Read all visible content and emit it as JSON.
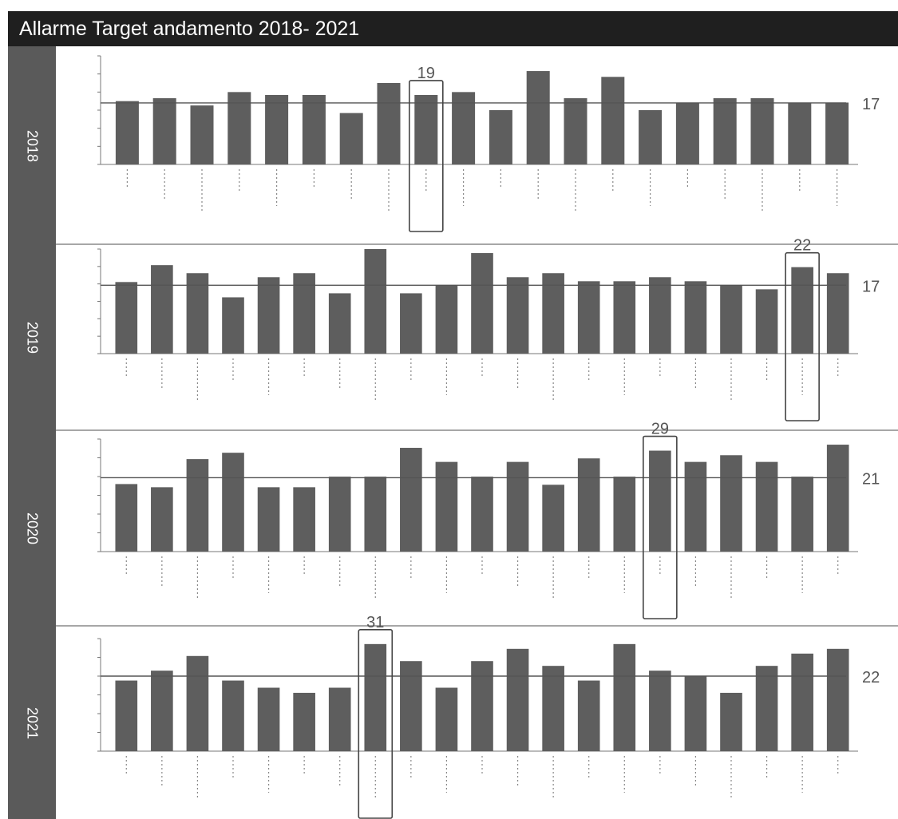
{
  "title": "Allarme Target andamento 2018- 2021",
  "colors": {
    "bar": "#5e5e5e",
    "sidebar": "#5a5a5a",
    "titlebar": "#1f1f1f",
    "line": "#555555",
    "highlight": "#444444"
  },
  "chart_data": [
    {
      "type": "bar",
      "year": "2018",
      "values": [
        17.5,
        18.3,
        16.3,
        20,
        19.2,
        19.2,
        14.2,
        22.5,
        19.2,
        20,
        15,
        25.8,
        18.3,
        24.2,
        15,
        17.1,
        18.3,
        18.3,
        17.1,
        17.1
      ],
      "reference_value": 17,
      "reference_label": "17",
      "highlight_index": 8,
      "highlight_label": "19"
    },
    {
      "type": "bar",
      "year": "2019",
      "values": [
        17.8,
        22,
        20,
        14,
        19,
        20,
        15,
        26,
        15,
        17,
        25,
        19,
        20,
        18,
        18,
        19,
        18,
        17,
        16,
        21.5,
        20
      ],
      "reference_value": 17,
      "reference_label": "17",
      "highlight_index": 19,
      "highlight_label": "22"
    },
    {
      "type": "bar",
      "year": "2020",
      "values": [
        19.2,
        18.3,
        26.3,
        28.1,
        18.3,
        18.3,
        21.3,
        21.3,
        29.5,
        25.5,
        21.3,
        25.5,
        19,
        26.5,
        21.3,
        28.7,
        25.5,
        27.4,
        25.5,
        21.3,
        30.4
      ],
      "reference_value": 21,
      "reference_label": "21",
      "highlight_index": 15,
      "highlight_label": "29"
    },
    {
      "type": "bar",
      "year": "2021",
      "values": [
        20.7,
        23.6,
        27.9,
        20.7,
        18.6,
        17.1,
        18.6,
        31.4,
        26.4,
        18.6,
        26.4,
        30,
        25,
        20.7,
        31.4,
        23.6,
        22.1,
        17.1,
        25,
        28.6,
        30
      ],
      "reference_value": 22,
      "reference_label": "22",
      "highlight_index": 7,
      "highlight_label": "31"
    }
  ]
}
